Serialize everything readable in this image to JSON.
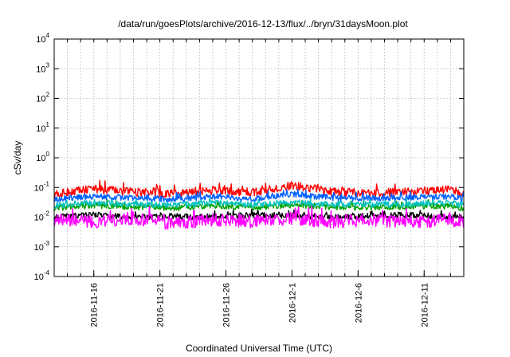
{
  "chart_data": {
    "type": "line",
    "title": "/data/run/goesPlots/archive/2016-12-13/flux/../bryn/31daysMoon.plot",
    "xlabel": "Coordinated Universal Time (UTC)",
    "ylabel": "cSv/day",
    "x_type": "date",
    "xlim": [
      "2016-11-13",
      "2016-12-14"
    ],
    "ylim": [
      0.0001,
      10000
    ],
    "yscale": "log",
    "grid": true,
    "legend": "none",
    "x_ticks": [
      "2016-11-16",
      "2016-11-21",
      "2016-11-26",
      "2016-12-1",
      "2016-12-6",
      "2016-12-11"
    ],
    "y_ticks": [
      {
        "base": "10",
        "exp": "-4"
      },
      {
        "base": "10",
        "exp": "-3"
      },
      {
        "base": "10",
        "exp": "-2"
      },
      {
        "base": "10",
        "exp": "-1"
      },
      {
        "base": "10",
        "exp": "0"
      },
      {
        "base": "10",
        "exp": "1"
      },
      {
        "base": "10",
        "exp": "2"
      },
      {
        "base": "10",
        "exp": "3"
      },
      {
        "base": "10",
        "exp": "4"
      }
    ],
    "series": [
      {
        "color": "#ff0000",
        "x": [
          "2016-11-13",
          "2016-11-16",
          "2016-11-19",
          "2016-11-22",
          "2016-11-25",
          "2016-11-28",
          "2016-12-1",
          "2016-12-4",
          "2016-12-7",
          "2016-12-10",
          "2016-12-13",
          "2016-12-14"
        ],
        "values": [
          0.06,
          0.09,
          0.07,
          0.06,
          0.08,
          0.065,
          0.12,
          0.07,
          0.065,
          0.07,
          0.09,
          0.06
        ]
      },
      {
        "color": "#000000",
        "x": [
          "2016-11-13",
          "2016-11-16",
          "2016-11-19",
          "2016-11-22",
          "2016-11-25",
          "2016-11-28",
          "2016-12-1",
          "2016-12-4",
          "2016-12-7",
          "2016-12-10",
          "2016-12-13",
          "2016-12-14"
        ],
        "values": [
          0.01,
          0.012,
          0.01,
          0.011,
          0.01,
          0.012,
          0.011,
          0.01,
          0.011,
          0.012,
          0.01,
          0.011
        ]
      },
      {
        "color": "#00a000",
        "x": [
          "2016-11-13",
          "2016-11-16",
          "2016-11-19",
          "2016-11-22",
          "2016-11-25",
          "2016-11-28",
          "2016-12-1",
          "2016-12-4",
          "2016-12-7",
          "2016-12-10",
          "2016-12-13",
          "2016-12-14"
        ],
        "values": [
          0.02,
          0.025,
          0.022,
          0.02,
          0.024,
          0.021,
          0.026,
          0.022,
          0.021,
          0.023,
          0.024,
          0.02
        ]
      },
      {
        "color": "#00c0c0",
        "x": [
          "2016-11-13",
          "2016-11-16",
          "2016-11-19",
          "2016-11-22",
          "2016-11-25",
          "2016-11-28",
          "2016-12-1",
          "2016-12-4",
          "2016-12-7",
          "2016-12-10",
          "2016-12-13",
          "2016-12-14"
        ],
        "values": [
          0.025,
          0.03,
          0.027,
          0.025,
          0.03,
          0.026,
          0.032,
          0.027,
          0.026,
          0.028,
          0.03,
          0.025
        ]
      },
      {
        "color": "#0060ff",
        "x": [
          "2016-11-13",
          "2016-11-16",
          "2016-11-19",
          "2016-11-22",
          "2016-11-25",
          "2016-11-28",
          "2016-12-1",
          "2016-12-4",
          "2016-12-7",
          "2016-12-10",
          "2016-12-13",
          "2016-12-14"
        ],
        "values": [
          0.04,
          0.05,
          0.045,
          0.04,
          0.05,
          0.042,
          0.06,
          0.045,
          0.043,
          0.046,
          0.05,
          0.04
        ]
      },
      {
        "color": "#ff00ff",
        "x": [
          "2016-11-13",
          "2016-11-16",
          "2016-11-19",
          "2016-11-22",
          "2016-11-25",
          "2016-11-28",
          "2016-12-1",
          "2016-12-4",
          "2016-12-7",
          "2016-12-10",
          "2016-12-13",
          "2016-12-14"
        ],
        "values": [
          0.008,
          0.007,
          0.009,
          0.006,
          0.008,
          0.007,
          0.009,
          0.007,
          0.008,
          0.007,
          0.008,
          0.007
        ]
      }
    ]
  }
}
